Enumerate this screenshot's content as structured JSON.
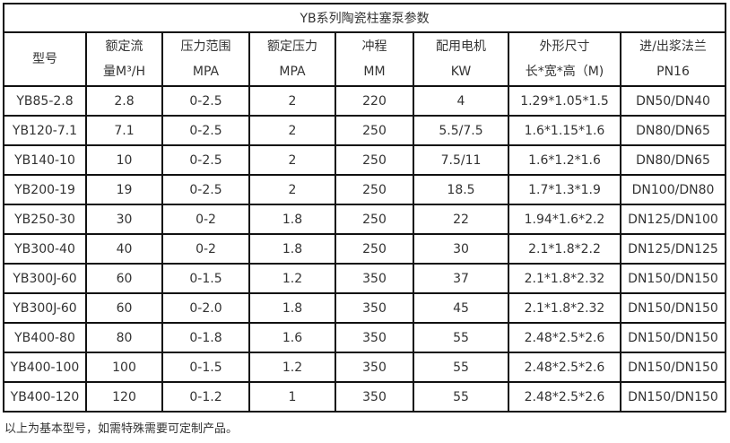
{
  "table": {
    "title": "YB系列陶瓷柱塞泵参数",
    "headers": [
      [
        "型号",
        ""
      ],
      [
        "额定流",
        "量M³/H"
      ],
      [
        "压力范围",
        "MPA"
      ],
      [
        "额定压力",
        "MPA"
      ],
      [
        "冲程",
        "MM"
      ],
      [
        "配用电机",
        "KW"
      ],
      [
        "外形尺寸",
        "长*宽*高（M)"
      ],
      [
        "进/出浆法兰",
        "PN16"
      ]
    ],
    "rows": [
      [
        "YB85-2.8",
        "2.8",
        "0-2.5",
        "2",
        "220",
        "4",
        "1.29*1.05*1.5",
        "DN50/DN40"
      ],
      [
        "YB120-7.1",
        "7.1",
        "0-2.5",
        "2",
        "250",
        "5.5/7.5",
        "1.6*1.15*1.6",
        "DN80/DN65"
      ],
      [
        "YB140-10",
        "10",
        "0-2.5",
        "2",
        "250",
        "7.5/11",
        "1.6*1.2*1.6",
        "DN80/DN65"
      ],
      [
        "YB200-19",
        "19",
        "0-2.5",
        "2",
        "250",
        "18.5",
        "1.7*1.3*1.9",
        "DN100/DN80"
      ],
      [
        "YB250-30",
        "30",
        "0-2",
        "1.8",
        "250",
        "22",
        "1.94*1.6*2.2",
        "DN125/DN100"
      ],
      [
        "YB300-40",
        "40",
        "0-2",
        "1.8",
        "250",
        "30",
        "2.1*1.8*2.2",
        "DN125/DN125"
      ],
      [
        "YB300J-60",
        "60",
        "0-1.5",
        "1.2",
        "350",
        "37",
        "2.1*1.8*2.32",
        "DN150/DN150"
      ],
      [
        "YB300J-60",
        "60",
        "0-2.0",
        "1.8",
        "350",
        "45",
        "2.1*1.8*2.32",
        "DN150/DN150"
      ],
      [
        "YB400-80",
        "80",
        "0-1.8",
        "1.6",
        "350",
        "55",
        "2.48*2.5*2.6",
        "DN150/DN150"
      ],
      [
        "YB400-100",
        "100",
        "0-1.5",
        "1.2",
        "350",
        "55",
        "2.48*2.5*2.6",
        "DN150/DN150"
      ],
      [
        "YB400-120",
        "120",
        "0-1.2",
        "1",
        "350",
        "55",
        "2.48*2.5*2.6",
        "DN150/DN150"
      ]
    ]
  },
  "note": "以上为基本型号，如需特殊需要可定制产品。"
}
